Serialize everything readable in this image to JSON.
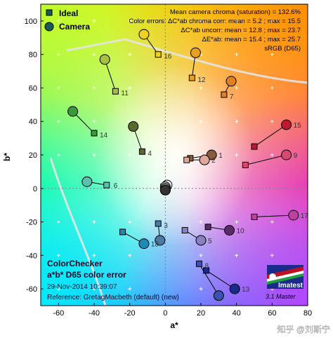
{
  "chart_data": {
    "type": "scatter",
    "title": "ColorChecker a*b* D65 color error",
    "xlabel": "a*",
    "ylabel": "b*",
    "xlim": [
      -70,
      80
    ],
    "ylim": [
      -70,
      110
    ],
    "xticks": [
      -60,
      -40,
      -20,
      0,
      20,
      40,
      60,
      80
    ],
    "yticks": [
      -60,
      -40,
      -20,
      0,
      20,
      40,
      60,
      80,
      100
    ],
    "grid": true,
    "legend": {
      "placement": "top-left",
      "ideal_label": "Ideal",
      "camera_label": "Camera"
    },
    "stats_lines": [
      "Mean camera chroma (saturation) = 132.6%",
      "Color errors:  ΔC*ab chroma corr:  mean = 5.2 ;  max = 15.5",
      "ΔC*ab uncorr:  mean = 12.8 ;  max = 23.7",
      "ΔE*ab:  mean = 15.4 ;  max = 25.7",
      "sRGB (D65)"
    ],
    "info_lines": [
      "ColorChecker",
      "a*b* D65 color error",
      "29-Nov-2014 10:39:07",
      "Reference: GretagMacbeth (default) (new)"
    ],
    "logo": {
      "name": "Imatest",
      "version": "3.1  Master"
    },
    "watermark": "知乎 @刘斯宁",
    "patches": [
      {
        "id": "1",
        "ideal": [
          14,
          18
        ],
        "camera": [
          26,
          20
        ],
        "color": "#8a5a3c"
      },
      {
        "id": "2",
        "ideal": [
          12,
          17
        ],
        "camera": [
          22,
          17
        ],
        "color": "#e0a898"
      },
      {
        "id": "3",
        "ideal": [
          -4,
          -21
        ],
        "camera": [
          -3,
          -31
        ],
        "color": "#4a7aa8"
      },
      {
        "id": "4",
        "ideal": [
          -13,
          22
        ],
        "camera": [
          -18,
          37
        ],
        "color": "#5a6a2a"
      },
      {
        "id": "5",
        "ideal": [
          11,
          -25
        ],
        "camera": [
          20,
          -31
        ],
        "color": "#8a82c0"
      },
      {
        "id": "6",
        "ideal": [
          -33,
          2
        ],
        "camera": [
          -44,
          4
        ],
        "color": "#5ac0b0"
      },
      {
        "id": "7",
        "ideal": [
          33,
          56
        ],
        "camera": [
          37,
          64
        ],
        "color": "#e08020"
      },
      {
        "id": "8",
        "ideal": [
          19,
          -45
        ],
        "camera": [
          30,
          -64
        ],
        "color": "#3a52b0"
      },
      {
        "id": "9",
        "ideal": [
          45,
          14
        ],
        "camera": [
          68,
          20
        ],
        "color": "#d84870"
      },
      {
        "id": "10",
        "ideal": [
          24,
          -23
        ],
        "camera": [
          36,
          -25
        ],
        "color": "#5a2a6a"
      },
      {
        "id": "11",
        "ideal": [
          -28,
          58
        ],
        "camera": [
          -34,
          77
        ],
        "color": "#a8c040"
      },
      {
        "id": "12",
        "ideal": [
          15,
          66
        ],
        "camera": [
          17,
          81
        ],
        "color": "#e8a020"
      },
      {
        "id": "13",
        "ideal": [
          23,
          -49
        ],
        "camera": [
          39,
          -60
        ],
        "color": "#1a2a8a"
      },
      {
        "id": "14",
        "ideal": [
          -40,
          33
        ],
        "camera": [
          -52,
          46
        ],
        "color": "#3a9a3a"
      },
      {
        "id": "15",
        "ideal": [
          50,
          25
        ],
        "camera": [
          68,
          38
        ],
        "color": "#c01830"
      },
      {
        "id": "16",
        "ideal": [
          -4,
          80
        ],
        "camera": [
          -12,
          92
        ],
        "color": "#f0d020"
      },
      {
        "id": "17",
        "ideal": [
          50,
          -17
        ],
        "camera": [
          72,
          -16
        ],
        "color": "#c040a0"
      },
      {
        "id": "18",
        "ideal": [
          -24,
          -26
        ],
        "camera": [
          -12,
          -33
        ],
        "color": "#1a8ab8"
      },
      {
        "id": "19",
        "ideal": [
          -1,
          1
        ],
        "camera": [
          1,
          2
        ],
        "color": "#f2f2f2"
      },
      {
        "id": "20",
        "ideal": [
          0,
          0
        ],
        "camera": [
          0,
          1
        ],
        "color": "#c8c8c8"
      },
      {
        "id": "21",
        "ideal": [
          0,
          0
        ],
        "camera": [
          0,
          0
        ],
        "color": "#a0a0a0"
      },
      {
        "id": "22",
        "ideal": [
          0,
          -1
        ],
        "camera": [
          0,
          -1
        ],
        "color": "#7a7a7a"
      },
      {
        "id": "23",
        "ideal": [
          0,
          -1
        ],
        "camera": [
          0,
          -1
        ],
        "color": "#555555"
      },
      {
        "id": "24",
        "ideal": [
          0,
          -1
        ],
        "camera": [
          0,
          -1
        ],
        "color": "#333333"
      }
    ]
  }
}
